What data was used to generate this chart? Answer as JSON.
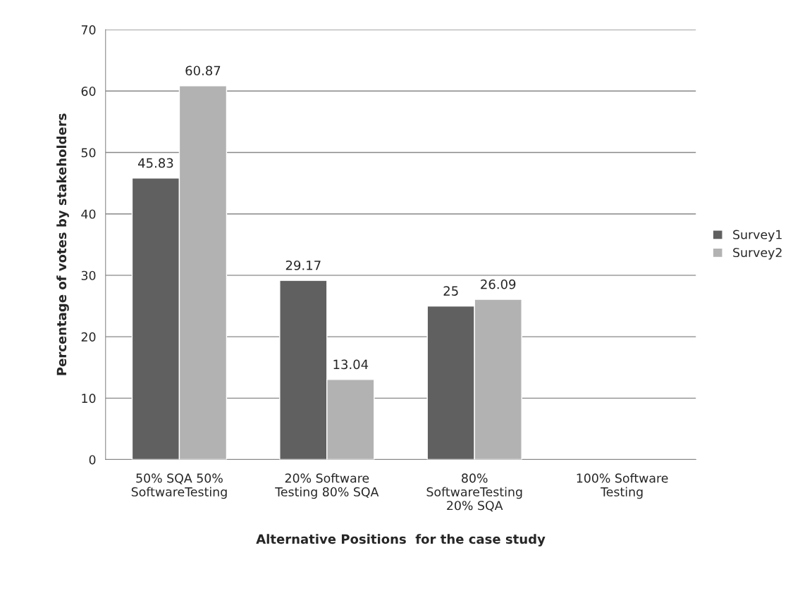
{
  "chart_data": {
    "type": "bar",
    "xlabel": "Alternative Positions  for the case study",
    "ylabel": "Percentage of votes by stakeholders",
    "categories": [
      "50% SQA 50%\nSoftwareTesting",
      "20% Software\nTesting 80% SQA",
      "80%\nSoftwareTesting\n20% SQA",
      "100% Software\nTesting"
    ],
    "series": [
      {
        "name": "Survey1",
        "color": "#606060",
        "values": [
          45.83,
          29.17,
          25,
          null
        ]
      },
      {
        "name": "Survey2",
        "color": "#b2b2b2",
        "values": [
          60.87,
          13.04,
          26.09,
          null
        ]
      }
    ],
    "ylim": [
      0,
      70
    ],
    "yticks": [
      0,
      10,
      20,
      30,
      40,
      50,
      60,
      70
    ],
    "grid": "y",
    "legend": "right",
    "data_labels": true
  }
}
